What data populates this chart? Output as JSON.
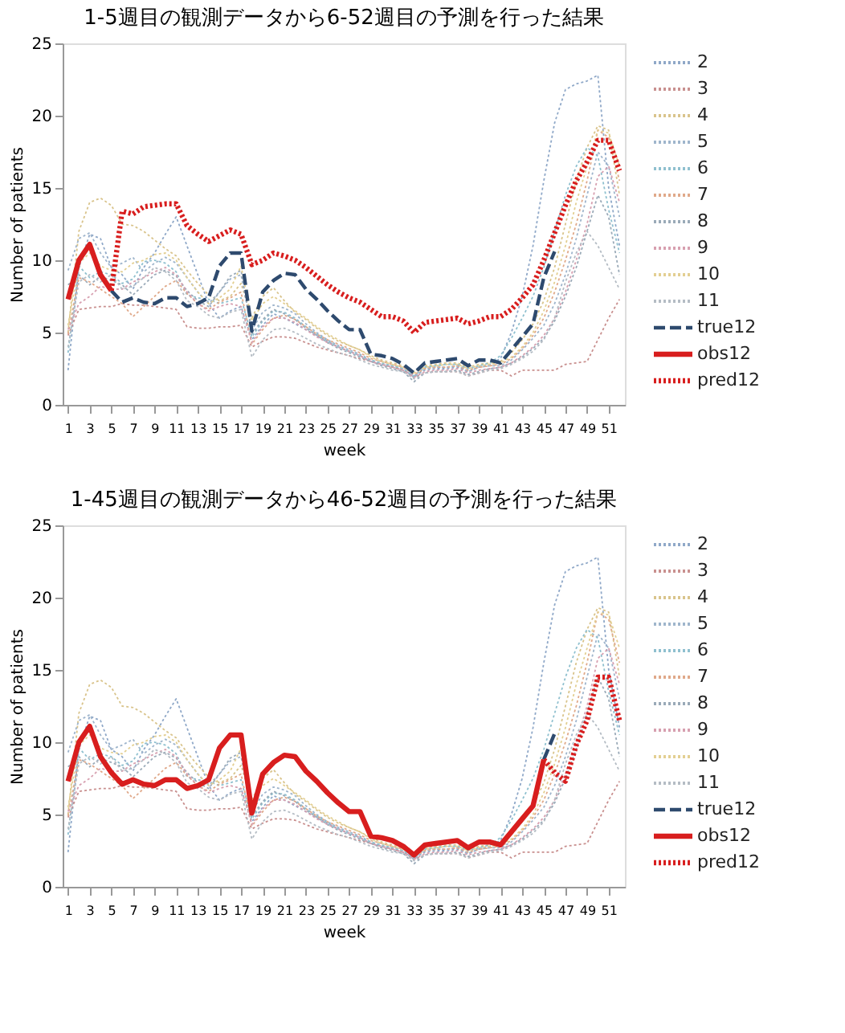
{
  "chart_data": [
    {
      "type": "line",
      "title": "1-5週目の観測データから6-52週目の予測を行った結果",
      "xlabel": "week",
      "ylabel": "Number of patients",
      "x": [
        1,
        2,
        3,
        4,
        5,
        6,
        7,
        8,
        9,
        10,
        11,
        12,
        13,
        14,
        15,
        16,
        17,
        18,
        19,
        20,
        21,
        22,
        23,
        24,
        25,
        26,
        27,
        28,
        29,
        30,
        31,
        32,
        33,
        34,
        35,
        36,
        37,
        38,
        39,
        40,
        41,
        42,
        43,
        44,
        45,
        46,
        47,
        48,
        49,
        50,
        51,
        52
      ],
      "xlim": [
        0.5,
        52.5
      ],
      "xticks": [
        1,
        3,
        5,
        7,
        9,
        11,
        13,
        15,
        17,
        19,
        21,
        23,
        25,
        27,
        29,
        31,
        33,
        35,
        37,
        39,
        41,
        43,
        45,
        47,
        49,
        51
      ],
      "ylim": [
        0,
        25
      ],
      "yticks": [
        0,
        5,
        10,
        15,
        20,
        25
      ],
      "legend": "right",
      "grid": false,
      "series": [
        {
          "name": "2",
          "color": "#8fa8c8",
          "line_style": "dotted",
          "values": [
            2.4,
            9.5,
            11.8,
            11.5,
            9.5,
            9.0,
            8.0,
            9.5,
            10.5,
            11.8,
            13.0,
            11.0,
            9.0,
            7.0,
            6.0,
            6.5,
            6.8,
            4.5,
            5.5,
            6.3,
            6.0,
            5.6,
            5.2,
            4.8,
            4.4,
            4.0,
            3.7,
            3.4,
            3.0,
            2.8,
            2.6,
            2.4,
            2.0,
            2.4,
            2.5,
            2.5,
            2.6,
            2.3,
            2.6,
            2.8,
            3.2,
            5.0,
            7.5,
            11.0,
            15.5,
            19.5,
            21.8,
            22.2,
            22.4,
            22.8,
            15.0,
            11.0
          ]
        },
        {
          "name": "3",
          "color": "#c9908f",
          "line_style": "dotted",
          "values": [
            4.8,
            6.6,
            6.7,
            6.8,
            6.8,
            7.0,
            6.9,
            6.9,
            6.8,
            6.7,
            6.6,
            5.4,
            5.3,
            5.3,
            5.4,
            5.4,
            5.5,
            4.0,
            4.4,
            4.7,
            4.7,
            4.6,
            4.3,
            4.0,
            3.8,
            3.6,
            3.4,
            3.2,
            3.0,
            2.8,
            2.6,
            2.4,
            1.9,
            2.2,
            2.3,
            2.3,
            2.3,
            2.0,
            2.2,
            2.4,
            2.4,
            2.0,
            2.4,
            2.4,
            2.4,
            2.4,
            2.8,
            2.9,
            3.0,
            4.5,
            6.0,
            7.3
          ]
        },
        {
          "name": "4",
          "color": "#d9c48c",
          "line_style": "dotted",
          "values": [
            5.0,
            12.0,
            14.0,
            14.3,
            13.8,
            12.5,
            12.4,
            12.0,
            11.4,
            10.8,
            10.3,
            9.3,
            8.4,
            7.6,
            7.2,
            7.5,
            8.4,
            6.0,
            7.5,
            8.1,
            7.2,
            6.4,
            5.9,
            5.3,
            4.8,
            4.4,
            4.1,
            3.8,
            3.4,
            3.1,
            2.9,
            2.7,
            2.3,
            2.7,
            2.8,
            2.9,
            2.9,
            2.6,
            2.8,
            2.9,
            3.0,
            3.6,
            4.5,
            5.6,
            7.2,
            9.5,
            12.5,
            15.5,
            17.8,
            19.3,
            19.0,
            14.5
          ]
        },
        {
          "name": "5",
          "color": "#9fb5cc",
          "line_style": "dotted",
          "values": [
            9.3,
            11.5,
            11.9,
            10.5,
            9.5,
            9.8,
            10.2,
            9.2,
            9.8,
            10.2,
            9.8,
            8.8,
            7.8,
            7.0,
            7.8,
            8.7,
            9.0,
            5.2,
            6.4,
            6.9,
            6.7,
            6.3,
            5.6,
            5.0,
            4.5,
            4.1,
            3.8,
            3.5,
            3.1,
            2.8,
            2.7,
            2.5,
            1.9,
            2.5,
            2.6,
            2.6,
            2.7,
            2.3,
            2.6,
            2.7,
            2.7,
            3.1,
            3.8,
            4.6,
            5.5,
            7.0,
            9.0,
            11.5,
            14.5,
            17.5,
            16.5,
            13.0
          ]
        },
        {
          "name": "6",
          "color": "#8fc0cf",
          "line_style": "dotted",
          "values": [
            3.6,
            9.6,
            8.8,
            9.2,
            9.0,
            8.4,
            8.7,
            9.9,
            10.0,
            9.8,
            9.2,
            7.6,
            7.4,
            7.3,
            7.0,
            7.2,
            7.4,
            4.7,
            5.8,
            6.5,
            6.4,
            6.0,
            5.4,
            4.9,
            4.4,
            4.0,
            3.7,
            3.4,
            3.1,
            2.9,
            2.7,
            2.5,
            2.0,
            2.6,
            2.7,
            2.8,
            2.8,
            2.5,
            2.7,
            2.9,
            3.4,
            4.6,
            6.0,
            7.5,
            9.5,
            12.0,
            14.5,
            16.5,
            17.8,
            17.2,
            13.5,
            10.5
          ]
        },
        {
          "name": "7",
          "color": "#e0a98a",
          "line_style": "dotted",
          "values": [
            4.9,
            8.8,
            8.5,
            8.0,
            7.5,
            7.0,
            6.1,
            6.8,
            7.5,
            8.2,
            8.6,
            7.7,
            7.0,
            6.6,
            7.1,
            7.4,
            7.8,
            4.2,
            5.2,
            6.0,
            6.2,
            5.9,
            5.4,
            4.9,
            4.5,
            4.2,
            3.9,
            3.6,
            3.2,
            3.0,
            2.8,
            2.6,
            2.1,
            2.5,
            2.6,
            2.6,
            2.7,
            2.4,
            2.6,
            2.7,
            2.8,
            3.2,
            3.9,
            4.8,
            6.0,
            7.8,
            10.0,
            12.5,
            15.5,
            19.0,
            18.5,
            15.5
          ]
        },
        {
          "name": "8",
          "color": "#9aaab8",
          "line_style": "dotted",
          "values": [
            8.3,
            9.0,
            8.3,
            8.9,
            8.6,
            8.3,
            7.6,
            8.3,
            9.0,
            9.3,
            8.9,
            7.9,
            7.2,
            6.8,
            7.8,
            8.9,
            9.3,
            4.9,
            5.9,
            6.6,
            6.3,
            5.9,
            5.3,
            4.8,
            4.3,
            3.9,
            3.6,
            3.3,
            3.0,
            2.7,
            2.5,
            2.3,
            1.6,
            2.2,
            2.3,
            2.3,
            2.4,
            2.1,
            2.3,
            2.5,
            2.6,
            2.9,
            3.3,
            3.9,
            4.6,
            5.8,
            7.5,
            9.5,
            12.0,
            14.5,
            13.0,
            9.0
          ]
        },
        {
          "name": "9",
          "color": "#d7a0b0",
          "line_style": "dotted",
          "values": [
            5.2,
            7.0,
            7.5,
            8.2,
            8.0,
            8.0,
            8.5,
            8.8,
            9.2,
            9.5,
            9.0,
            7.8,
            7.0,
            6.5,
            6.8,
            7.0,
            6.8,
            4.3,
            5.4,
            6.0,
            6.0,
            5.7,
            5.2,
            4.7,
            4.3,
            4.0,
            3.7,
            3.4,
            3.0,
            2.8,
            2.6,
            2.4,
            1.9,
            2.3,
            2.4,
            2.4,
            2.5,
            2.2,
            2.4,
            2.5,
            2.6,
            2.9,
            3.4,
            4.0,
            4.8,
            6.0,
            7.8,
            10.0,
            12.5,
            15.8,
            16.5,
            14.0
          ]
        },
        {
          "name": "10",
          "color": "#e3cf92",
          "line_style": "dotted",
          "values": [
            5.5,
            9.8,
            10.5,
            9.6,
            9.3,
            9.2,
            9.8,
            10.0,
            10.4,
            10.5,
            10.0,
            8.8,
            7.8,
            7.0,
            7.4,
            8.0,
            9.6,
            5.8,
            7.0,
            7.5,
            7.0,
            6.5,
            6.0,
            5.4,
            4.9,
            4.5,
            4.1,
            3.8,
            3.3,
            3.0,
            2.8,
            2.6,
            2.2,
            2.6,
            2.7,
            2.8,
            2.8,
            2.5,
            2.7,
            2.8,
            2.9,
            3.3,
            4.0,
            5.0,
            6.5,
            8.5,
            11.0,
            14.0,
            16.5,
            19.0,
            18.8,
            16.5
          ]
        },
        {
          "name": "11",
          "color": "#b4bcc4",
          "line_style": "dotted",
          "values": [
            4.0,
            8.5,
            9.0,
            8.5,
            9.0,
            8.0,
            8.2,
            8.8,
            9.5,
            9.2,
            8.6,
            7.2,
            6.8,
            6.2,
            6.0,
            6.4,
            6.6,
            3.3,
            4.5,
            5.2,
            5.3,
            5.0,
            4.6,
            4.2,
            3.9,
            3.6,
            3.4,
            3.1,
            2.8,
            2.6,
            2.4,
            2.3,
            1.8,
            2.2,
            2.3,
            2.3,
            2.3,
            2.0,
            2.2,
            2.4,
            2.5,
            2.8,
            3.2,
            3.7,
            4.5,
            6.0,
            8.5,
            10.5,
            12.0,
            11.0,
            9.5,
            8.0
          ]
        },
        {
          "name": "true12",
          "color": "#2e4a6e",
          "line_style": "dashed",
          "values": [
            null,
            null,
            null,
            null,
            7.9,
            7.1,
            7.4,
            7.1,
            7.0,
            7.4,
            7.4,
            6.8,
            7.0,
            7.4,
            9.6,
            10.5,
            10.5,
            5.1,
            7.8,
            8.6,
            9.1,
            9.0,
            8.0,
            7.3,
            6.5,
            5.8,
            5.2,
            5.2,
            3.5,
            3.4,
            3.2,
            2.8,
            2.2,
            2.9,
            3.0,
            3.1,
            3.2,
            2.7,
            3.1,
            3.1,
            2.9,
            3.8,
            4.7,
            5.6,
            8.8,
            10.6,
            null,
            null,
            null,
            null,
            null,
            null
          ]
        },
        {
          "name": "obs12",
          "color": "#d81e1e",
          "line_style": "solid",
          "values": [
            7.3,
            10.0,
            11.1,
            9.0,
            7.9,
            null,
            null,
            null,
            null,
            null,
            null,
            null,
            null,
            null,
            null,
            null,
            null,
            null,
            null,
            null,
            null,
            null,
            null,
            null,
            null,
            null,
            null,
            null,
            null,
            null,
            null,
            null,
            null,
            null,
            null,
            null,
            null,
            null,
            null,
            null,
            null,
            null,
            null,
            null,
            null,
            null,
            null,
            null,
            null,
            null,
            null,
            null
          ]
        },
        {
          "name": "pred12",
          "color": "#d81e1e",
          "line_style": "dotted",
          "values": [
            null,
            null,
            null,
            null,
            7.9,
            13.4,
            13.2,
            13.7,
            13.8,
            13.9,
            13.9,
            12.4,
            11.8,
            11.3,
            11.7,
            12.1,
            11.8,
            9.7,
            10.0,
            10.5,
            10.3,
            10.0,
            9.5,
            8.9,
            8.3,
            7.8,
            7.4,
            7.1,
            6.6,
            6.1,
            6.1,
            5.8,
            5.0,
            5.7,
            5.8,
            5.9,
            6.0,
            5.6,
            5.8,
            6.1,
            6.1,
            6.6,
            7.4,
            8.3,
            10.0,
            11.9,
            13.8,
            15.5,
            16.8,
            18.3,
            18.3,
            16.2
          ]
        }
      ]
    },
    {
      "type": "line",
      "title": "1-45週目の観測データから46-52週目の予測を行った結果",
      "xlabel": "week",
      "ylabel": "Number of patients",
      "x": [
        1,
        2,
        3,
        4,
        5,
        6,
        7,
        8,
        9,
        10,
        11,
        12,
        13,
        14,
        15,
        16,
        17,
        18,
        19,
        20,
        21,
        22,
        23,
        24,
        25,
        26,
        27,
        28,
        29,
        30,
        31,
        32,
        33,
        34,
        35,
        36,
        37,
        38,
        39,
        40,
        41,
        42,
        43,
        44,
        45,
        46,
        47,
        48,
        49,
        50,
        51,
        52
      ],
      "xlim": [
        0.5,
        52.5
      ],
      "xticks": [
        1,
        3,
        5,
        7,
        9,
        11,
        13,
        15,
        17,
        19,
        21,
        23,
        25,
        27,
        29,
        31,
        33,
        35,
        37,
        39,
        41,
        43,
        45,
        47,
        49,
        51
      ],
      "ylim": [
        0,
        25
      ],
      "yticks": [
        0,
        5,
        10,
        15,
        20,
        25
      ],
      "legend": "right",
      "grid": false,
      "series": [
        {
          "name": "2",
          "color": "#8fa8c8",
          "line_style": "dotted",
          "values": [
            2.4,
            9.5,
            11.8,
            11.5,
            9.5,
            9.0,
            8.0,
            9.5,
            10.5,
            11.8,
            13.0,
            11.0,
            9.0,
            7.0,
            6.0,
            6.5,
            6.8,
            4.5,
            5.5,
            6.3,
            6.0,
            5.6,
            5.2,
            4.8,
            4.4,
            4.0,
            3.7,
            3.4,
            3.0,
            2.8,
            2.6,
            2.4,
            2.0,
            2.4,
            2.5,
            2.5,
            2.6,
            2.3,
            2.6,
            2.8,
            3.2,
            5.0,
            7.5,
            11.0,
            15.5,
            19.5,
            21.8,
            22.2,
            22.4,
            22.8,
            15.0,
            11.0
          ]
        },
        {
          "name": "3",
          "color": "#c9908f",
          "line_style": "dotted",
          "values": [
            4.8,
            6.6,
            6.7,
            6.8,
            6.8,
            7.0,
            6.9,
            6.9,
            6.8,
            6.7,
            6.6,
            5.4,
            5.3,
            5.3,
            5.4,
            5.4,
            5.5,
            4.0,
            4.4,
            4.7,
            4.7,
            4.6,
            4.3,
            4.0,
            3.8,
            3.6,
            3.4,
            3.2,
            3.0,
            2.8,
            2.6,
            2.4,
            1.9,
            2.2,
            2.3,
            2.3,
            2.3,
            2.0,
            2.2,
            2.4,
            2.4,
            2.0,
            2.4,
            2.4,
            2.4,
            2.4,
            2.8,
            2.9,
            3.0,
            4.5,
            6.0,
            7.3
          ]
        },
        {
          "name": "4",
          "color": "#d9c48c",
          "line_style": "dotted",
          "values": [
            5.0,
            12.0,
            14.0,
            14.3,
            13.8,
            12.5,
            12.4,
            12.0,
            11.4,
            10.8,
            10.3,
            9.3,
            8.4,
            7.6,
            7.2,
            7.5,
            8.4,
            6.0,
            7.5,
            8.1,
            7.2,
            6.4,
            5.9,
            5.3,
            4.8,
            4.4,
            4.1,
            3.8,
            3.4,
            3.1,
            2.9,
            2.7,
            2.3,
            2.7,
            2.8,
            2.9,
            2.9,
            2.6,
            2.8,
            2.9,
            3.0,
            3.6,
            4.5,
            5.6,
            7.2,
            9.5,
            12.5,
            15.5,
            17.8,
            19.3,
            19.0,
            14.5
          ]
        },
        {
          "name": "5",
          "color": "#9fb5cc",
          "line_style": "dotted",
          "values": [
            9.3,
            11.5,
            11.9,
            10.5,
            9.5,
            9.8,
            10.2,
            9.2,
            9.8,
            10.2,
            9.8,
            8.8,
            7.8,
            7.0,
            7.8,
            8.7,
            9.0,
            5.2,
            6.4,
            6.9,
            6.7,
            6.3,
            5.6,
            5.0,
            4.5,
            4.1,
            3.8,
            3.5,
            3.1,
            2.8,
            2.7,
            2.5,
            1.9,
            2.5,
            2.6,
            2.6,
            2.7,
            2.3,
            2.6,
            2.7,
            2.7,
            3.1,
            3.8,
            4.6,
            5.5,
            7.0,
            9.0,
            11.5,
            14.5,
            17.5,
            16.5,
            13.0
          ]
        },
        {
          "name": "6",
          "color": "#8fc0cf",
          "line_style": "dotted",
          "values": [
            3.6,
            9.6,
            8.8,
            9.2,
            9.0,
            8.4,
            8.7,
            9.9,
            10.0,
            9.8,
            9.2,
            7.6,
            7.4,
            7.3,
            7.0,
            7.2,
            7.4,
            4.7,
            5.8,
            6.5,
            6.4,
            6.0,
            5.4,
            4.9,
            4.4,
            4.0,
            3.7,
            3.4,
            3.1,
            2.9,
            2.7,
            2.5,
            2.0,
            2.6,
            2.7,
            2.8,
            2.8,
            2.5,
            2.7,
            2.9,
            3.4,
            4.6,
            6.0,
            7.5,
            9.5,
            12.0,
            14.5,
            16.5,
            17.8,
            17.2,
            13.5,
            10.5
          ]
        },
        {
          "name": "7",
          "color": "#e0a98a",
          "line_style": "dotted",
          "values": [
            4.9,
            8.8,
            8.5,
            8.0,
            7.5,
            7.0,
            6.1,
            6.8,
            7.5,
            8.2,
            8.6,
            7.7,
            7.0,
            6.6,
            7.1,
            7.4,
            7.8,
            4.2,
            5.2,
            6.0,
            6.2,
            5.9,
            5.4,
            4.9,
            4.5,
            4.2,
            3.9,
            3.6,
            3.2,
            3.0,
            2.8,
            2.6,
            2.1,
            2.5,
            2.6,
            2.6,
            2.7,
            2.4,
            2.6,
            2.7,
            2.8,
            3.2,
            3.9,
            4.8,
            6.0,
            7.8,
            10.0,
            12.5,
            15.5,
            19.0,
            18.5,
            15.5
          ]
        },
        {
          "name": "8",
          "color": "#9aaab8",
          "line_style": "dotted",
          "values": [
            8.3,
            9.0,
            8.3,
            8.9,
            8.6,
            8.3,
            7.6,
            8.3,
            9.0,
            9.3,
            8.9,
            7.9,
            7.2,
            6.8,
            7.8,
            8.9,
            9.3,
            4.9,
            5.9,
            6.6,
            6.3,
            5.9,
            5.3,
            4.8,
            4.3,
            3.9,
            3.6,
            3.3,
            3.0,
            2.7,
            2.5,
            2.3,
            1.6,
            2.2,
            2.3,
            2.3,
            2.4,
            2.1,
            2.3,
            2.5,
            2.6,
            2.9,
            3.3,
            3.9,
            4.6,
            5.8,
            7.5,
            9.5,
            12.0,
            14.5,
            13.0,
            9.0
          ]
        },
        {
          "name": "9",
          "color": "#d7a0b0",
          "line_style": "dotted",
          "values": [
            5.2,
            7.0,
            7.5,
            8.2,
            8.0,
            8.0,
            8.5,
            8.8,
            9.2,
            9.5,
            9.0,
            7.8,
            7.0,
            6.5,
            6.8,
            7.0,
            6.8,
            4.3,
            5.4,
            6.0,
            6.0,
            5.7,
            5.2,
            4.7,
            4.3,
            4.0,
            3.7,
            3.4,
            3.0,
            2.8,
            2.6,
            2.4,
            1.9,
            2.3,
            2.4,
            2.4,
            2.5,
            2.2,
            2.4,
            2.5,
            2.6,
            2.9,
            3.4,
            4.0,
            4.8,
            6.0,
            7.8,
            10.0,
            12.5,
            15.8,
            16.5,
            14.0
          ]
        },
        {
          "name": "10",
          "color": "#e3cf92",
          "line_style": "dotted",
          "values": [
            5.5,
            9.8,
            10.5,
            9.6,
            9.3,
            9.2,
            9.8,
            10.0,
            10.4,
            10.5,
            10.0,
            8.8,
            7.8,
            7.0,
            7.4,
            8.0,
            9.6,
            5.8,
            7.0,
            7.5,
            7.0,
            6.5,
            6.0,
            5.4,
            4.9,
            4.5,
            4.1,
            3.8,
            3.3,
            3.0,
            2.8,
            2.6,
            2.2,
            2.6,
            2.7,
            2.8,
            2.8,
            2.5,
            2.7,
            2.8,
            2.9,
            3.3,
            4.0,
            5.0,
            6.5,
            8.5,
            11.0,
            14.0,
            16.5,
            19.0,
            18.8,
            16.5
          ]
        },
        {
          "name": "11",
          "color": "#b4bcc4",
          "line_style": "dotted",
          "values": [
            4.0,
            8.5,
            9.0,
            8.5,
            9.0,
            8.0,
            8.2,
            8.8,
            9.5,
            9.2,
            8.6,
            7.2,
            6.8,
            6.2,
            6.0,
            6.4,
            6.6,
            3.3,
            4.5,
            5.2,
            5.3,
            5.0,
            4.6,
            4.2,
            3.9,
            3.6,
            3.4,
            3.1,
            2.8,
            2.6,
            2.4,
            2.3,
            1.8,
            2.2,
            2.3,
            2.3,
            2.3,
            2.0,
            2.2,
            2.4,
            2.5,
            2.8,
            3.2,
            3.7,
            4.5,
            6.0,
            8.5,
            10.5,
            12.0,
            11.0,
            9.5,
            8.0
          ]
        },
        {
          "name": "true12",
          "color": "#2e4a6e",
          "line_style": "dashed",
          "values": [
            null,
            null,
            null,
            null,
            null,
            null,
            null,
            null,
            null,
            null,
            null,
            null,
            null,
            null,
            null,
            null,
            null,
            null,
            null,
            null,
            null,
            null,
            null,
            null,
            null,
            null,
            null,
            null,
            null,
            null,
            null,
            null,
            null,
            null,
            null,
            null,
            null,
            null,
            null,
            null,
            null,
            null,
            null,
            null,
            8.8,
            10.6,
            null,
            null,
            null,
            null,
            null,
            null
          ]
        },
        {
          "name": "obs12",
          "color": "#d81e1e",
          "line_style": "solid",
          "values": [
            7.3,
            10.0,
            11.1,
            9.0,
            7.9,
            7.1,
            7.4,
            7.1,
            7.0,
            7.4,
            7.4,
            6.8,
            7.0,
            7.4,
            9.6,
            10.5,
            10.5,
            5.1,
            7.8,
            8.6,
            9.1,
            9.0,
            8.0,
            7.3,
            6.5,
            5.8,
            5.2,
            5.2,
            3.5,
            3.4,
            3.2,
            2.8,
            2.2,
            2.9,
            3.0,
            3.1,
            3.2,
            2.7,
            3.1,
            3.1,
            2.9,
            3.8,
            4.7,
            5.6,
            8.8,
            null,
            null,
            null,
            null,
            null,
            null,
            null
          ]
        },
        {
          "name": "pred12",
          "color": "#d81e1e",
          "line_style": "dotted",
          "values": [
            null,
            null,
            null,
            null,
            null,
            null,
            null,
            null,
            null,
            null,
            null,
            null,
            null,
            null,
            null,
            null,
            null,
            null,
            null,
            null,
            null,
            null,
            null,
            null,
            null,
            null,
            null,
            null,
            null,
            null,
            null,
            null,
            null,
            null,
            null,
            null,
            null,
            null,
            null,
            null,
            null,
            null,
            null,
            null,
            8.8,
            7.9,
            7.3,
            9.8,
            11.5,
            14.5,
            14.5,
            11.5
          ]
        }
      ]
    }
  ]
}
